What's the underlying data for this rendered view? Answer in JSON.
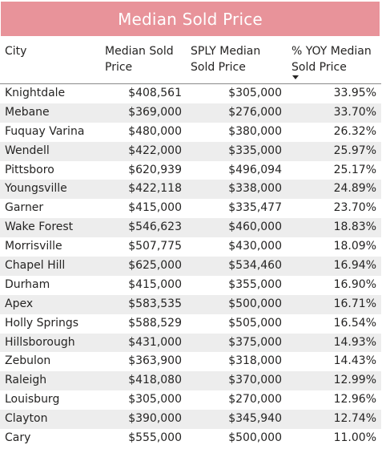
{
  "title": "Median Sold Price",
  "columns": {
    "city": "City",
    "median_line1": "Median Sold",
    "median_line2": "Price",
    "sply_line1": "SPLY Median",
    "sply_line2": "Sold Price",
    "yoy_line1": "% YOY Median",
    "yoy_line2": "Sold Price"
  },
  "sort": {
    "column": "yoy",
    "direction": "descending"
  },
  "rows": [
    {
      "city": "Knightdale",
      "median": "$408,561",
      "sply": "$305,000",
      "yoy": "33.95%"
    },
    {
      "city": "Mebane",
      "median": "$369,000",
      "sply": "$276,000",
      "yoy": "33.70%"
    },
    {
      "city": "Fuquay Varina",
      "median": "$480,000",
      "sply": "$380,000",
      "yoy": "26.32%"
    },
    {
      "city": "Wendell",
      "median": "$422,000",
      "sply": "$335,000",
      "yoy": "25.97%"
    },
    {
      "city": "Pittsboro",
      "median": "$620,939",
      "sply": "$496,094",
      "yoy": "25.17%"
    },
    {
      "city": "Youngsville",
      "median": "$422,118",
      "sply": "$338,000",
      "yoy": "24.89%"
    },
    {
      "city": "Garner",
      "median": "$415,000",
      "sply": "$335,477",
      "yoy": "23.70%"
    },
    {
      "city": "Wake Forest",
      "median": "$546,623",
      "sply": "$460,000",
      "yoy": "18.83%"
    },
    {
      "city": "Morrisville",
      "median": "$507,775",
      "sply": "$430,000",
      "yoy": "18.09%"
    },
    {
      "city": "Chapel Hill",
      "median": "$625,000",
      "sply": "$534,460",
      "yoy": "16.94%"
    },
    {
      "city": "Durham",
      "median": "$415,000",
      "sply": "$355,000",
      "yoy": "16.90%"
    },
    {
      "city": "Apex",
      "median": "$583,535",
      "sply": "$500,000",
      "yoy": "16.71%"
    },
    {
      "city": "Holly Springs",
      "median": "$588,529",
      "sply": "$505,000",
      "yoy": "16.54%"
    },
    {
      "city": "Hillsborough",
      "median": "$431,000",
      "sply": "$375,000",
      "yoy": "14.93%"
    },
    {
      "city": "Zebulon",
      "median": "$363,900",
      "sply": "$318,000",
      "yoy": "14.43%"
    },
    {
      "city": "Raleigh",
      "median": "$418,080",
      "sply": "$370,000",
      "yoy": "12.99%"
    },
    {
      "city": "Louisburg",
      "median": "$305,000",
      "sply": "$270,000",
      "yoy": "12.96%"
    },
    {
      "city": "Clayton",
      "median": "$390,000",
      "sply": "$345,940",
      "yoy": "12.74%"
    },
    {
      "city": "Cary",
      "median": "$555,000",
      "sply": "$500,000",
      "yoy": "11.00%"
    }
  ],
  "colors": {
    "title_bg": "#e8939a",
    "title_text": "#ffffff",
    "stripe": "#ededed",
    "text": "#252423"
  }
}
